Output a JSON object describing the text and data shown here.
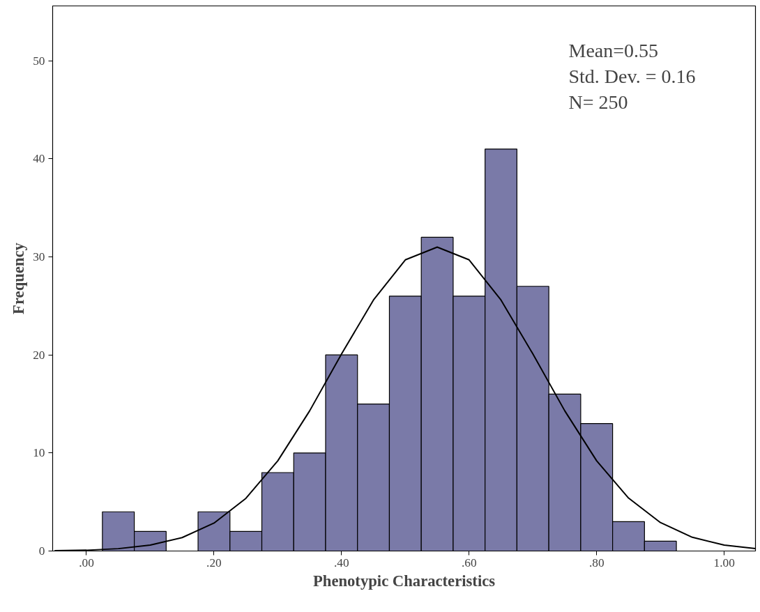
{
  "chart_data": {
    "type": "histogram",
    "xlabel": "Phenotypic Characteristics",
    "ylabel": "Frequency",
    "xlim": [
      -0.053,
      1.049
    ],
    "ylim": [
      0,
      55.6
    ],
    "xticks": [
      {
        "value": 0,
        "label": ".00"
      },
      {
        "value": 0.2,
        "label": ".20"
      },
      {
        "value": 0.4,
        "label": ".40"
      },
      {
        "value": 0.6,
        "label": ".60"
      },
      {
        "value": 0.8,
        "label": ".80"
      },
      {
        "value": 1.0,
        "label": "1.00"
      }
    ],
    "yticks": [
      0,
      10,
      20,
      30,
      40,
      50
    ],
    "grid": false,
    "annotations": [
      "Mean=0.55",
      "Std. Dev. = 0.16",
      "N= 250"
    ],
    "series": [
      {
        "color": "#7a7aa8",
        "bins": [
          0.025,
          0.075,
          0.125,
          0.175,
          0.225,
          0.275,
          0.325,
          0.375,
          0.425,
          0.475,
          0.525,
          0.575,
          0.625,
          0.675,
          0.725,
          0.775,
          0.825,
          0.875,
          0.925
        ],
        "values": [
          4,
          2,
          0,
          4,
          2,
          8,
          10,
          20,
          15,
          26,
          32,
          26,
          41,
          27,
          16,
          13,
          3,
          1
        ]
      },
      {
        "type": "line",
        "color": "#000000",
        "x": [
          -0.05,
          0.0,
          0.05,
          0.1,
          0.15,
          0.2,
          0.25,
          0.3,
          0.35,
          0.4,
          0.45,
          0.5,
          0.55,
          0.6,
          0.65,
          0.7,
          0.75,
          0.8,
          0.85,
          0.9,
          0.95,
          1.0,
          1.049
        ],
        "values": [
          0.03,
          0.08,
          0.24,
          0.6,
          1.37,
          2.85,
          5.37,
          9.2,
          14.3,
          20.1,
          25.6,
          29.7,
          31.0,
          29.7,
          25.6,
          20.1,
          14.3,
          9.2,
          5.4,
          2.9,
          1.4,
          0.6,
          0.25
        ]
      }
    ]
  }
}
